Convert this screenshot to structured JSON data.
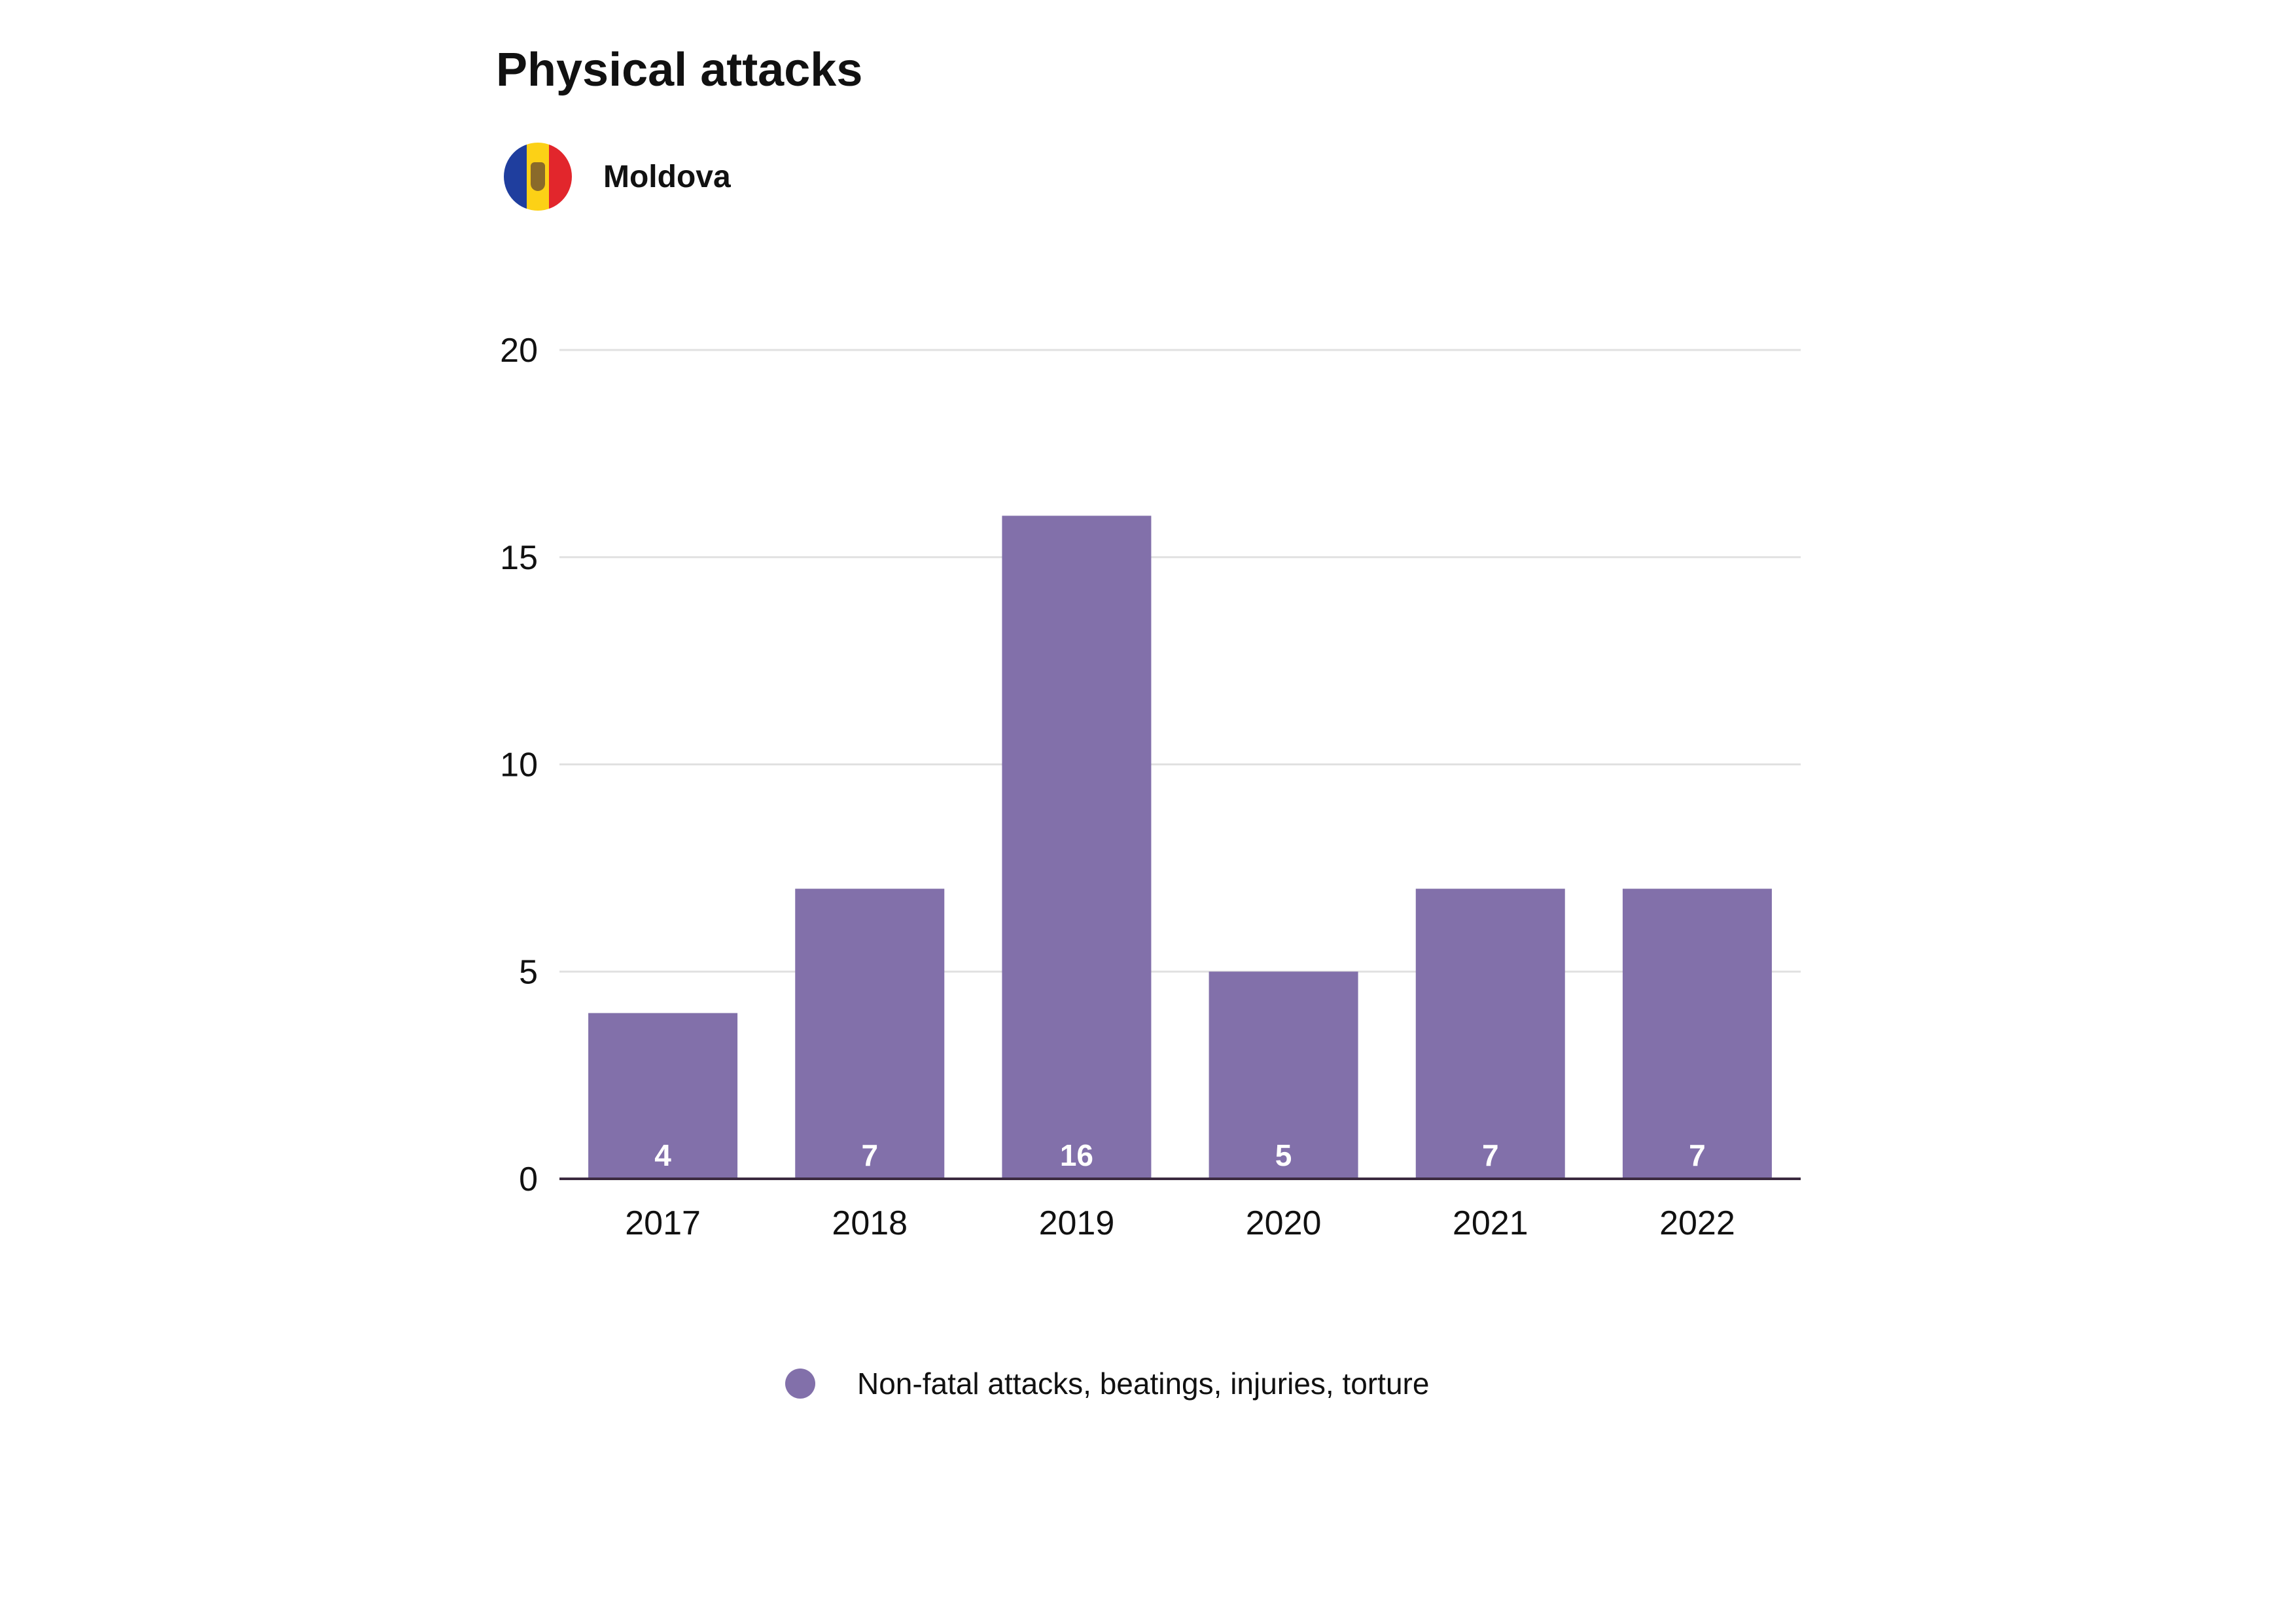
{
  "title": "Physical attacks",
  "country": {
    "name": "Moldova",
    "icon": "moldova-flag-icon",
    "flag_colors": [
      "#1f3e9e",
      "#fcd116",
      "#e2262c"
    ]
  },
  "colors": {
    "bar": "#8270aa",
    "grid": "#e1e1e1",
    "axis": "#3b2a3f",
    "bar_label": "#ffffff"
  },
  "chart_data": {
    "type": "bar",
    "title": "Physical attacks",
    "categories": [
      "2017",
      "2018",
      "2019",
      "2020",
      "2021",
      "2022"
    ],
    "series": [
      {
        "name": "Non-fatal attacks, beatings, injuries, torture",
        "values": [
          4,
          7,
          16,
          5,
          7,
          7
        ]
      }
    ],
    "data_labels": [
      "4",
      "7",
      "16",
      "5",
      "7",
      "7"
    ],
    "ylim": [
      0,
      20
    ],
    "yticks": [
      0,
      5,
      10,
      15,
      20
    ],
    "ytick_labels": [
      "0",
      "5",
      "10",
      "15",
      "20"
    ],
    "grid": true,
    "legend_position": "bottom"
  }
}
